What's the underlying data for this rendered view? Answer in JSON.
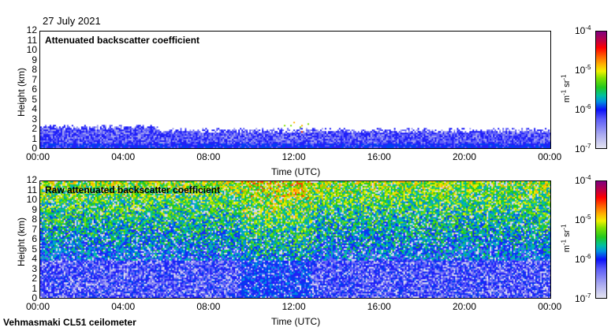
{
  "date": "27 July 2021",
  "footer": "Vehmasmaki CL51 ceilometer",
  "chart_data": [
    {
      "type": "heatmap",
      "title": "Attenuated backscatter coefficient",
      "xlabel": "Time (UTC)",
      "ylabel": "Height (km)",
      "x_ticks": [
        "00:00",
        "04:00",
        "08:00",
        "12:00",
        "16:00",
        "20:00",
        "00:00"
      ],
      "y_ticks": [
        "0",
        "1",
        "2",
        "3",
        "4",
        "5",
        "6",
        "7",
        "8",
        "9",
        "10",
        "11",
        "12"
      ],
      "ylim": [
        0,
        12
      ],
      "colorbar": {
        "scale": "log",
        "range": [
          1e-07,
          0.0001
        ],
        "ticks": [
          "10",
          "10",
          "10",
          "10"
        ],
        "exponents": [
          "-7",
          "-6",
          "-5",
          "-4"
        ],
        "unit": "m",
        "unit_exp": "-1",
        "unit2": "sr",
        "unit2_exp": "-1"
      },
      "signal_top_km": 2.0
    },
    {
      "type": "heatmap",
      "title": "Raw attenuated backscatter coefficient",
      "xlabel": "Time (UTC)",
      "ylabel": "Height (km)",
      "x_ticks": [
        "00:00",
        "04:00",
        "08:00",
        "12:00",
        "16:00",
        "20:00",
        "00:00"
      ],
      "y_ticks": [
        "0",
        "1",
        "2",
        "3",
        "4",
        "5",
        "6",
        "7",
        "8",
        "9",
        "10",
        "11",
        "12"
      ],
      "ylim": [
        0,
        12
      ],
      "colorbar": {
        "scale": "log",
        "range": [
          1e-07,
          0.0001
        ],
        "ticks": [
          "10",
          "10",
          "10",
          "10"
        ],
        "exponents": [
          "-7",
          "-6",
          "-5",
          "-4"
        ],
        "unit": "m",
        "unit_exp": "-1",
        "unit2": "sr",
        "unit2_exp": "-1"
      }
    }
  ]
}
